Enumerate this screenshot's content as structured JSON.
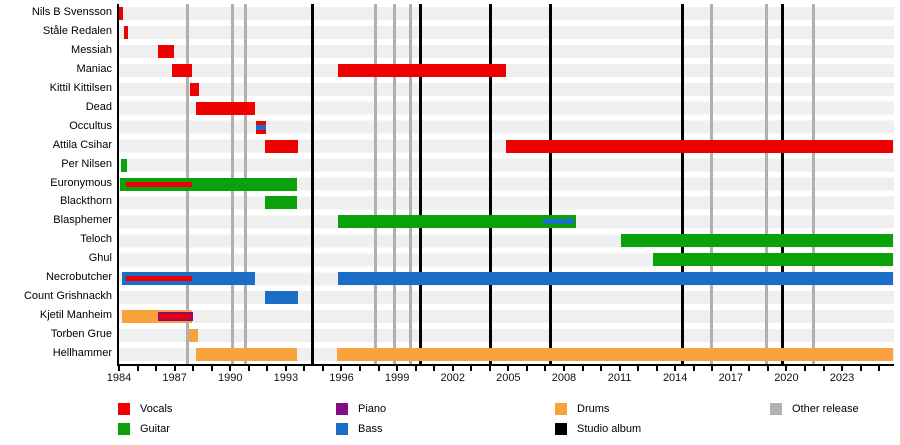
{
  "chart_data": {
    "type": "timeline-gantt",
    "description_visible_text_only": true,
    "x_axis": {
      "start": 1984,
      "end": 2025.74,
      "tick_labels": [
        "1984",
        "1987",
        "1990",
        "1993",
        "1996",
        "1999",
        "2002",
        "2005",
        "2008",
        "2011",
        "2014",
        "2017",
        "2020",
        "2023"
      ],
      "tick_label_years": [
        1984,
        1987,
        1990,
        1993,
        1996,
        1999,
        2002,
        2005,
        2008,
        2011,
        2014,
        2017,
        2020,
        2023
      ],
      "minor_tick_start": 1984,
      "minor_tick_end": 2025,
      "grid": "row-stripes"
    },
    "rows": [
      {
        "name": "Nils B Svensson",
        "segments": [
          {
            "role": "vocals",
            "start": 1984.0,
            "end": 1984.2
          }
        ]
      },
      {
        "name": "Ståle Redalen",
        "segments": [
          {
            "role": "vocals",
            "start": 1984.27,
            "end": 1984.49
          }
        ]
      },
      {
        "name": "Messiah",
        "segments": [
          {
            "role": "vocals",
            "start": 1986.1,
            "end": 1986.97
          }
        ]
      },
      {
        "name": "Maniac",
        "segments": [
          {
            "role": "vocals",
            "start": 1986.87,
            "end": 1987.95
          },
          {
            "role": "vocals",
            "start": 1995.8,
            "end": 2004.9
          }
        ]
      },
      {
        "name": "Kittil Kittilsen",
        "segments": [
          {
            "role": "vocals",
            "start": 1987.83,
            "end": 1988.31
          }
        ]
      },
      {
        "name": "Dead",
        "segments": [
          {
            "role": "vocals",
            "start": 1988.17,
            "end": 1991.32
          }
        ]
      },
      {
        "name": "Occultus",
        "segments": [
          {
            "role": "vocals",
            "start": 1991.4,
            "end": 1991.95,
            "stripes": [
              {
                "role": "bass",
                "start": 1991.4,
                "end": 1991.95
              }
            ]
          }
        ]
      },
      {
        "name": "Attila Csihar",
        "segments": [
          {
            "role": "vocals",
            "start": 1991.87,
            "end": 1993.67
          },
          {
            "role": "vocals",
            "start": 2004.87,
            "end": 2025.74
          }
        ]
      },
      {
        "name": "Per Nilsen",
        "segments": [
          {
            "role": "guitar",
            "start": 1984.1,
            "end": 1984.43
          }
        ]
      },
      {
        "name": "Euronymous",
        "segments": [
          {
            "role": "guitar",
            "start": 1984.05,
            "end": 1993.6,
            "stripes": [
              {
                "role": "vocals",
                "start": 1984.37,
                "end": 1987.94
              }
            ]
          }
        ]
      },
      {
        "name": "Blackthorn",
        "segments": [
          {
            "role": "guitar",
            "start": 1991.87,
            "end": 1993.6
          }
        ]
      },
      {
        "name": "Blasphemer",
        "segments": [
          {
            "role": "guitar",
            "start": 1995.81,
            "end": 2008.65,
            "stripes": [
              {
                "role": "bass",
                "start": 2006.87,
                "end": 2008.54
              }
            ]
          }
        ]
      },
      {
        "name": "Teloch",
        "segments": [
          {
            "role": "guitar",
            "start": 2011.06,
            "end": 2025.74
          }
        ]
      },
      {
        "name": "Ghul",
        "segments": [
          {
            "role": "guitar",
            "start": 2012.79,
            "end": 2025.74
          }
        ]
      },
      {
        "name": "Necrobutcher",
        "segments": [
          {
            "role": "bass",
            "start": 1984.16,
            "end": 1991.33,
            "stripes": [
              {
                "role": "vocals",
                "start": 1984.38,
                "end": 1987.94
              }
            ]
          },
          {
            "role": "bass",
            "start": 1995.8,
            "end": 2025.74
          }
        ]
      },
      {
        "name": "Count Grishnackh",
        "segments": [
          {
            "role": "bass",
            "start": 1991.87,
            "end": 1993.67
          }
        ]
      },
      {
        "name": "Kjetil Manheim",
        "segments": [
          {
            "role": "drums",
            "start": 1984.16,
            "end": 1987.95,
            "stripes": [
              {
                "role": "piano",
                "start": 1986.08,
                "end": 1988.0
              },
              {
                "role": "vocals",
                "start": 1986.18,
                "end": 1987.9
              }
            ]
          }
        ]
      },
      {
        "name": "Torben Grue",
        "segments": [
          {
            "role": "drums",
            "start": 1987.8,
            "end": 1988.26
          }
        ]
      },
      {
        "name": "Hellhammer",
        "segments": [
          {
            "role": "drums",
            "start": 1988.14,
            "end": 1993.58
          },
          {
            "role": "drums",
            "start": 1995.76,
            "end": 2025.74
          }
        ]
      }
    ],
    "events": {
      "studio_albums": [
        1994.45,
        2000.27,
        2004.05,
        2007.3,
        2014.4,
        2019.8
      ],
      "other_releases": [
        1987.7,
        1990.12,
        1990.82,
        1997.85,
        1998.87,
        1999.73,
        2015.95,
        2018.9,
        2021.45
      ]
    },
    "legend": {
      "columns": [
        [
          {
            "label": "Vocals",
            "role": "vocals"
          },
          {
            "label": "Guitar",
            "role": "guitar"
          }
        ],
        [
          {
            "label": "Piano",
            "role": "piano"
          },
          {
            "label": "Bass",
            "role": "bass"
          }
        ],
        [
          {
            "label": "Drums",
            "role": "drums"
          },
          {
            "label": "Studio album",
            "role": "studio_album"
          }
        ],
        [
          {
            "label": "Other release",
            "role": "other_release"
          }
        ]
      ]
    },
    "colors": {
      "vocals": "#ee0000",
      "guitar": "#0aa10a",
      "piano": "#850c85",
      "bass": "#1b6ec8",
      "drums": "#f7a23b",
      "studio_album": "#000000",
      "other_release": "#b2b2b2",
      "row_stripe": "#efefef",
      "axis": "#000000"
    }
  }
}
